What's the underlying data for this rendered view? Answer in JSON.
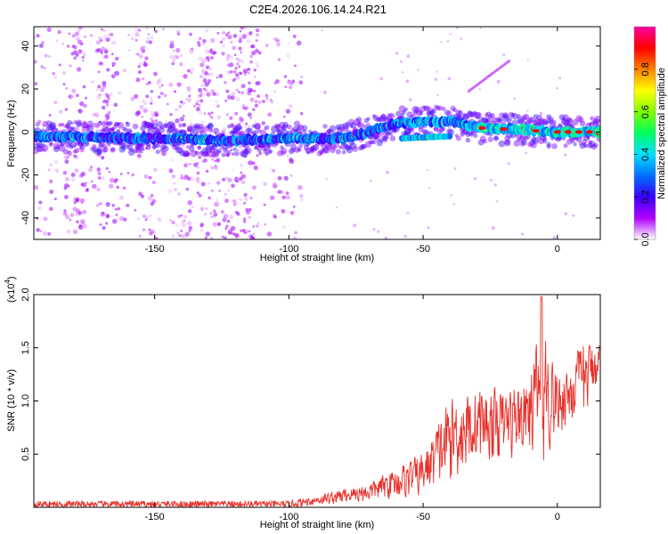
{
  "title": "C2E4.2026.106.14.24.R21",
  "chart_data": [
    {
      "type": "heatmap",
      "name": "spectrogram",
      "xlabel": "Height of straight line (km)",
      "ylabel": "Frequency (Hz)",
      "xlim": [
        -195,
        16
      ],
      "ylim": [
        -50,
        49
      ],
      "xticks": [
        -150,
        -100,
        -50,
        0
      ],
      "xtick_labels": [
        "-150",
        "-100",
        "-50",
        "0"
      ],
      "yticks": [
        -40,
        -20,
        0,
        20,
        40
      ],
      "ytick_labels": [
        "-40",
        "-20",
        "0",
        "20",
        "40"
      ],
      "colorbar": {
        "label": "Normalized spectral amplitude",
        "range": [
          0,
          1
        ],
        "ticks": [
          0.0,
          0.2,
          0.4,
          0.6,
          0.8
        ],
        "tick_labels": [
          "0.0",
          "0.2",
          "0.4",
          "0.6",
          "0.8"
        ],
        "colors": [
          "#ffffff",
          "#b000ff",
          "#3a00ff",
          "#0070ff",
          "#00e0ff",
          "#00ff60",
          "#80ff00",
          "#ffff00",
          "#ff8000",
          "#ff0000",
          "#ff00a0"
        ]
      },
      "ridge": [
        {
          "x": -195,
          "y": -2
        },
        {
          "x": -150,
          "y": -3
        },
        {
          "x": -120,
          "y": -4
        },
        {
          "x": -100,
          "y": -3
        },
        {
          "x": -80,
          "y": -3
        },
        {
          "x": -70,
          "y": 0
        },
        {
          "x": -60,
          "y": 4
        },
        {
          "x": -50,
          "y": 5
        },
        {
          "x": -40,
          "y": 5
        },
        {
          "x": -30,
          "y": 2
        },
        {
          "x": 0,
          "y": 0
        },
        {
          "x": 16,
          "y": 0
        }
      ],
      "branch": [
        {
          "x": -58,
          "y": -3
        },
        {
          "x": -40,
          "y": -2
        }
      ],
      "streak": [
        {
          "x": -33,
          "y": 19
        },
        {
          "x": -18,
          "y": 33
        }
      ]
    },
    {
      "type": "line",
      "name": "snr",
      "xlabel": "Height of straight line (km)",
      "ylabel": "SNR (10 * v/v)",
      "multiplier_label": "(x10",
      "multiplier_exp": "4",
      "multiplier_close": ")",
      "xlim": [
        -195,
        16
      ],
      "ylim": [
        0,
        2.0
      ],
      "xticks": [
        -150,
        -100,
        -50,
        0
      ],
      "xtick_labels": [
        "-150",
        "-100",
        "-50",
        "0"
      ],
      "yticks": [
        0.5,
        1.0,
        1.5,
        2.0
      ],
      "ytick_labels": [
        "0.5",
        "1.0",
        "1.5",
        "2.0"
      ],
      "color": "#e8302a",
      "envelope": [
        {
          "x": -195,
          "lo": 0.0,
          "hi": 0.06
        },
        {
          "x": -100,
          "lo": 0.0,
          "hi": 0.06
        },
        {
          "x": -90,
          "lo": 0.0,
          "hi": 0.12
        },
        {
          "x": -70,
          "lo": 0.02,
          "hi": 0.25
        },
        {
          "x": -60,
          "lo": 0.05,
          "hi": 0.4
        },
        {
          "x": -50,
          "lo": 0.05,
          "hi": 0.55
        },
        {
          "x": -40,
          "lo": 0.1,
          "hi": 1.1
        },
        {
          "x": -30,
          "lo": 0.3,
          "hi": 1.2
        },
        {
          "x": -20,
          "lo": 0.35,
          "hi": 1.15
        },
        {
          "x": -10,
          "lo": 0.4,
          "hi": 1.3
        },
        {
          "x": -6,
          "lo": 0.2,
          "hi": 1.98
        },
        {
          "x": 0,
          "lo": 0.6,
          "hi": 1.3
        },
        {
          "x": 10,
          "lo": 0.7,
          "hi": 1.6
        },
        {
          "x": 16,
          "lo": 1.2,
          "hi": 1.6
        }
      ]
    }
  ]
}
